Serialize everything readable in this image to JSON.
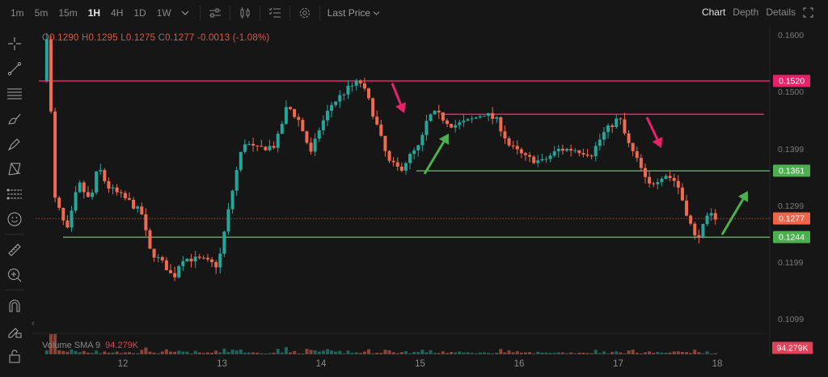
{
  "toolbar": {
    "timeframes": [
      "1m",
      "5m",
      "15m",
      "1H",
      "4H",
      "1D",
      "1W"
    ],
    "active_timeframe": "1H",
    "price_type": "Last Price",
    "icons": [
      "chevron-down-icon",
      "indicator-settings-icon",
      "candle-type-icon",
      "list-settings-icon",
      "gear-icon"
    ]
  },
  "right_nav": {
    "chart": "Chart",
    "depth": "Depth",
    "details": "Details",
    "fullscreen_icon": "fullscreen-icon",
    "active": "Chart"
  },
  "left_tools": [
    "crosshair-icon",
    "trendline-icon",
    "parallel-lines-icon",
    "brush-icon",
    "pen-icon",
    "pattern-icon",
    "fib-icon",
    "emoji-icon",
    "ruler-icon",
    "zoom-in-icon",
    "magnet-icon",
    "lock-drawing-icon",
    "unlock-icon"
  ],
  "ohlc": {
    "o_key": "O",
    "o": "0.1290",
    "h_key": "H",
    "h": "0.1295",
    "l_key": "L",
    "l": "0.1275",
    "c_key": "C",
    "c": "0.1277",
    "change": "-0.0013 (-1.08%)"
  },
  "volume": {
    "label": "Volume SMA 9",
    "value": "94.279K",
    "badge": "94.279K"
  },
  "chart_data": {
    "type": "candlestick",
    "interval": "1H",
    "x_ticks": [
      "12",
      "13",
      "14",
      "15",
      "16",
      "17",
      "18"
    ],
    "y_ticks": [
      "0.1600",
      "0.1500",
      "0.1399",
      "0.1299",
      "0.1199",
      "0.1099"
    ],
    "ylim": [
      0.1045,
      0.162
    ],
    "close_path": [
      [
        11.19,
        0.152
      ],
      [
        11.23,
        0.1605
      ],
      [
        11.27,
        0.1477
      ],
      [
        11.31,
        0.1313
      ],
      [
        11.39,
        0.1277
      ],
      [
        11.43,
        0.1249
      ],
      [
        11.5,
        0.1299
      ],
      [
        11.55,
        0.1341
      ],
      [
        11.67,
        0.1306
      ],
      [
        11.75,
        0.137
      ],
      [
        11.84,
        0.1334
      ],
      [
        12.07,
        0.1306
      ],
      [
        12.19,
        0.1285
      ],
      [
        12.27,
        0.1221
      ],
      [
        12.43,
        0.1193
      ],
      [
        12.51,
        0.1171
      ],
      [
        12.59,
        0.1207
      ],
      [
        12.8,
        0.1204
      ],
      [
        12.96,
        0.1193
      ],
      [
        13.05,
        0.1277
      ],
      [
        13.14,
        0.1356
      ],
      [
        13.22,
        0.1413
      ],
      [
        13.34,
        0.1399
      ],
      [
        13.54,
        0.1406
      ],
      [
        13.66,
        0.1477
      ],
      [
        13.78,
        0.1449
      ],
      [
        13.9,
        0.1391
      ],
      [
        13.98,
        0.1434
      ],
      [
        14.1,
        0.1477
      ],
      [
        14.27,
        0.1506
      ],
      [
        14.39,
        0.152
      ],
      [
        14.47,
        0.1491
      ],
      [
        14.55,
        0.1449
      ],
      [
        14.68,
        0.1377
      ],
      [
        14.8,
        0.1363
      ],
      [
        14.88,
        0.1384
      ],
      [
        15.0,
        0.1406
      ],
      [
        15.08,
        0.1456
      ],
      [
        15.16,
        0.1463
      ],
      [
        15.33,
        0.1441
      ],
      [
        15.49,
        0.1449
      ],
      [
        15.65,
        0.1463
      ],
      [
        15.78,
        0.1449
      ],
      [
        15.9,
        0.1406
      ],
      [
        16.07,
        0.1384
      ],
      [
        16.23,
        0.1377
      ],
      [
        16.4,
        0.1399
      ],
      [
        16.56,
        0.1399
      ],
      [
        16.73,
        0.1391
      ],
      [
        16.85,
        0.1427
      ],
      [
        17.01,
        0.1456
      ],
      [
        17.09,
        0.1413
      ],
      [
        17.22,
        0.137
      ],
      [
        17.3,
        0.1334
      ],
      [
        17.47,
        0.1356
      ],
      [
        17.59,
        0.1341
      ],
      [
        17.71,
        0.1277
      ],
      [
        17.78,
        0.1241
      ],
      [
        17.84,
        0.1256
      ],
      [
        17.92,
        0.1284
      ],
      [
        18.02,
        0.1277
      ]
    ],
    "last_price": 0.1277
  },
  "levels": [
    {
      "price": 0.152,
      "label": "0.1520",
      "color": "#e8216b",
      "badge": true
    },
    {
      "price": 0.1461,
      "color": "#e8216b",
      "badge": false
    },
    {
      "price": 0.1361,
      "label": "0.1361",
      "color": "#4caf50",
      "badge": true
    },
    {
      "price": 0.1244,
      "label": "0.1244",
      "color": "#4caf50",
      "badge": true
    }
  ],
  "last_price_badge": {
    "label": "0.1277",
    "color": "#f0654a"
  },
  "arrows": [
    {
      "kind": "down",
      "color": "#e8216b"
    },
    {
      "kind": "down",
      "color": "#e8216b"
    },
    {
      "kind": "up",
      "color": "#4caf50"
    },
    {
      "kind": "up",
      "color": "#4caf50"
    }
  ],
  "colors": {
    "up": "#26a69a",
    "down": "#ef6a4f",
    "bg": "#161616"
  }
}
